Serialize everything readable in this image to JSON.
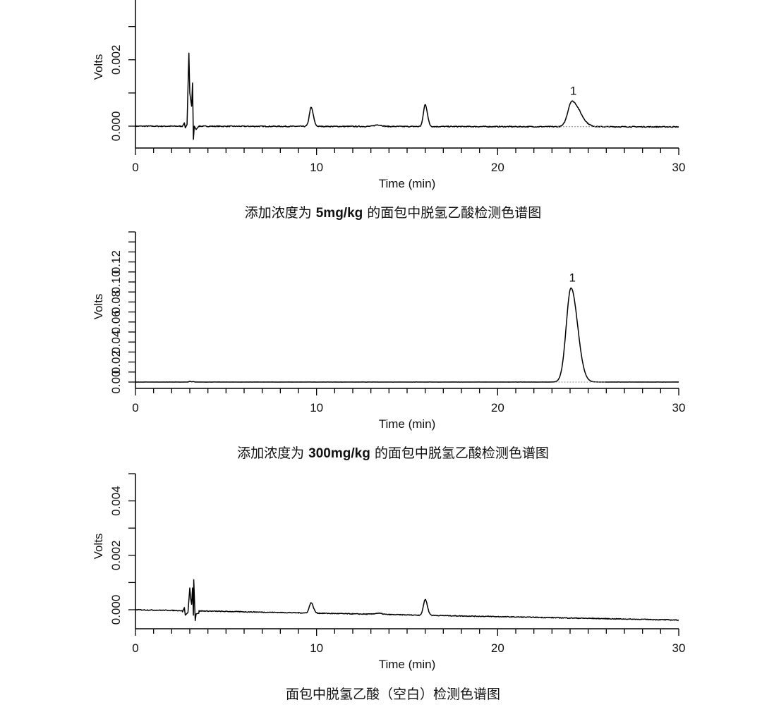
{
  "chart_data": [
    {
      "type": "line",
      "title": "添加浓度为 5mg/kg 的面包中脱氢乙酸检测色谱图",
      "caption_parts": {
        "prefix": "添加浓度为 ",
        "bold": "5mg/kg",
        "suffix": " 的面包中脱氢乙酸检测色谱图"
      },
      "xlabel": "Time (min)",
      "ylabel": "Volts",
      "xlim": [
        0,
        30
      ],
      "ylim": [
        -0.00065,
        0.0038
      ],
      "x_ticks": [
        "0",
        "10",
        "20",
        "30"
      ],
      "y_ticks": [
        "0.000",
        "0.002"
      ],
      "y_tick_values": [
        0,
        0.002
      ],
      "y_minor_step": 0.001,
      "baseline": {
        "start": 0.0,
        "end": -2e-05,
        "noise": 1.5e-05
      },
      "spikes": [
        [
          2.6,
          0
        ],
        [
          2.7,
          0.0001
        ],
        [
          2.75,
          -5e-05
        ],
        [
          2.85,
          5e-05
        ],
        [
          2.95,
          0.0022
        ],
        [
          3.0,
          0.001
        ],
        [
          3.05,
          0.0008
        ],
        [
          3.1,
          0.0006
        ],
        [
          3.15,
          0.0013
        ],
        [
          3.2,
          -0.0004
        ],
        [
          3.25,
          0.0
        ],
        [
          3.35,
          -0.0001
        ],
        [
          3.5,
          0
        ]
      ],
      "peaks": [
        {
          "time": 9.7,
          "height": 0.00057,
          "width": 0.1,
          "tail": 1.2
        },
        {
          "time": 13.4,
          "height": 5e-05,
          "width": 0.2,
          "tail": 1
        },
        {
          "time": 16.0,
          "height": 0.00066,
          "width": 0.1,
          "tail": 1.2
        },
        {
          "time": 24.1,
          "height": 0.00077,
          "width": 0.22,
          "tail": 2.0,
          "label": "1"
        }
      ],
      "integration_baseline": [
        23.3,
        26.2
      ]
    },
    {
      "type": "line",
      "title": "添加浓度为 300mg/kg 的面包中脱氢乙酸检测色谱图",
      "caption_parts": {
        "prefix": "添加浓度为 ",
        "bold": "300mg/kg",
        "suffix": " 的面包中脱氢乙酸检测色谱图"
      },
      "xlabel": "Time (min)",
      "ylabel": "Volts",
      "xlim": [
        0,
        30
      ],
      "ylim": [
        -0.0065,
        0.15
      ],
      "x_ticks": [
        "0",
        "10",
        "20",
        "30"
      ],
      "y_ticks": [
        "0.00",
        "0.02",
        "0.04",
        "0.06",
        "0.08",
        "0.10",
        "0.12"
      ],
      "y_tick_values": [
        0,
        0.02,
        0.04,
        0.06,
        0.08,
        0.1,
        0.12
      ],
      "y_minor_step": 0.01,
      "baseline": {
        "start": 0.0,
        "end": 0.0,
        "noise": 5e-05
      },
      "spikes": [
        [
          2.9,
          0
        ],
        [
          3.0,
          0.0008
        ],
        [
          3.1,
          0.0002
        ],
        [
          3.2,
          0.0005
        ],
        [
          3.3,
          0
        ]
      ],
      "peaks": [
        {
          "time": 24.05,
          "height": 0.094,
          "width": 0.26,
          "tail": 1.4,
          "label": "1"
        }
      ],
      "integration_baseline": [
        23.2,
        26.0
      ]
    },
    {
      "type": "line",
      "title": "面包中脱氢乙酸（空白）检测色谱图",
      "caption_parts": {
        "prefix": "面包中脱氢乙酸（空白）检测色谱图",
        "bold": "",
        "suffix": ""
      },
      "xlabel": "Time (min)",
      "ylabel": "Volts",
      "xlim": [
        0,
        30
      ],
      "ylim": [
        -0.0007,
        0.005
      ],
      "x_ticks": [
        "0",
        "10",
        "20",
        "30"
      ],
      "y_ticks": [
        "0.000",
        "0.002",
        "0.004"
      ],
      "y_tick_values": [
        0,
        0.002,
        0.004
      ],
      "y_minor_step": 0.001,
      "baseline": {
        "start": 0.0,
        "end": -0.00038,
        "noise": 1.5e-05
      },
      "spikes": [
        [
          2.6,
          -8e-05
        ],
        [
          2.7,
          8e-05
        ],
        [
          2.75,
          -0.0002
        ],
        [
          2.9,
          -0.0001
        ],
        [
          3.0,
          0.0008
        ],
        [
          3.05,
          0.0004
        ],
        [
          3.1,
          0.0002
        ],
        [
          3.15,
          0.0008
        ],
        [
          3.2,
          -0.0002
        ],
        [
          3.22,
          0.0011
        ],
        [
          3.3,
          -0.0004
        ],
        [
          3.35,
          -0.00015
        ],
        [
          3.5,
          -0.00013
        ]
      ],
      "peaks": [
        {
          "time": 9.7,
          "height": 0.00038,
          "width": 0.1,
          "tail": 1.2
        },
        {
          "time": 13.4,
          "height": 4e-05,
          "width": 0.2,
          "tail": 1
        },
        {
          "time": 16.0,
          "height": 0.00058,
          "width": 0.1,
          "tail": 1.2
        }
      ]
    }
  ]
}
